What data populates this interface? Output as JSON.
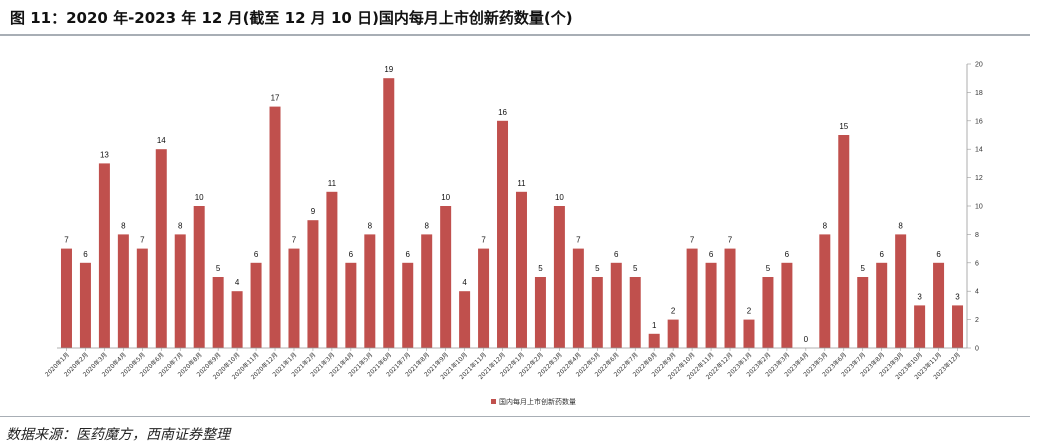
{
  "header": {
    "title": "图 11：2020 年-2023 年 12 月(截至 12 月 10 日)国内每月上市创新药数量(个)"
  },
  "footer": {
    "source": "数据来源：医药魔方，西南证券整理"
  },
  "colors": {
    "bar": "#c0504d",
    "rule": "#a8aeb5"
  },
  "chart_data": {
    "type": "bar",
    "categories": [
      "2020年1月",
      "2020年2月",
      "2020年3月",
      "2020年4月",
      "2020年5月",
      "2020年6月",
      "2020年7月",
      "2020年8月",
      "2020年9月",
      "2020年10月",
      "2020年11月",
      "2020年12月",
      "2021年1月",
      "2021年2月",
      "2021年3月",
      "2021年4月",
      "2021年5月",
      "2021年6月",
      "2021年7月",
      "2021年8月",
      "2021年9月",
      "2021年10月",
      "2021年11月",
      "2021年12月",
      "2022年1月",
      "2022年2月",
      "2022年3月",
      "2022年4月",
      "2022年5月",
      "2022年6月",
      "2022年7月",
      "2022年8月",
      "2022年9月",
      "2022年10月",
      "2022年11月",
      "2022年12月",
      "2023年1月",
      "2023年2月",
      "2023年3月",
      "2023年4月",
      "2023年5月",
      "2023年6月",
      "2023年7月",
      "2023年8月",
      "2023年9月",
      "2023年10月",
      "2023年11月",
      "2023年12月"
    ],
    "series": [
      {
        "name": "国内每月上市创新药数量",
        "values": [
          7,
          6,
          13,
          8,
          7,
          14,
          8,
          10,
          5,
          4,
          6,
          17,
          7,
          9,
          11,
          6,
          8,
          19,
          6,
          8,
          10,
          4,
          7,
          16,
          11,
          5,
          10,
          7,
          5,
          6,
          5,
          1,
          2,
          7,
          6,
          7,
          2,
          5,
          6,
          0,
          8,
          15,
          5,
          6,
          8,
          3,
          6,
          3
        ]
      }
    ],
    "ylim": [
      0,
      20
    ],
    "yticks": [
      0,
      2,
      4,
      6,
      8,
      10,
      12,
      14,
      16,
      18,
      20
    ],
    "y_axis_side": "right",
    "legend_position": "bottom-center",
    "data_labels": true,
    "grid": false
  }
}
